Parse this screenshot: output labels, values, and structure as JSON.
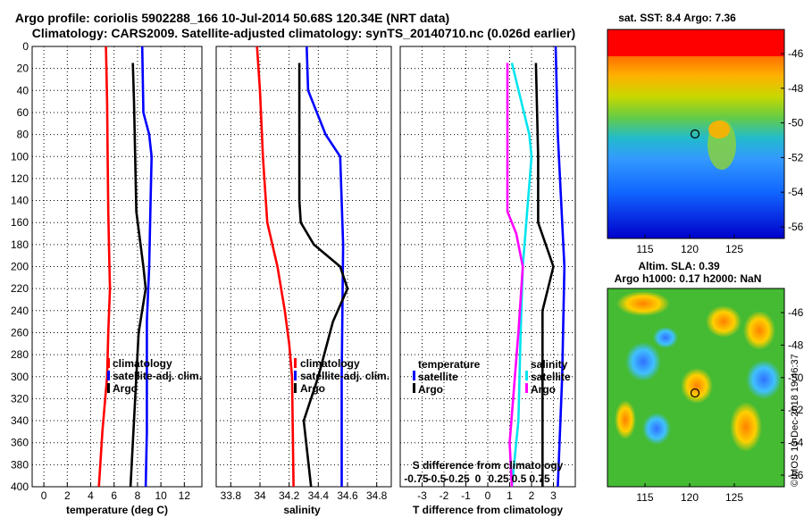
{
  "title_line1": "Argo profile: coriolis 5902288_166 10-Jul-2014 50.68S 120.34E (NRT data)",
  "title_line2": "Climatology: CARS2009. Satellite-adjusted climatology: synTS_20140710.nc (0.026d earlier)",
  "watermark": "©IMOS 13-Dec-2018 19:46:37",
  "colors": {
    "red": "#ff0000",
    "blue": "#0000ff",
    "black": "#000000",
    "magenta": "#ff00ff",
    "cyan": "#00e5ee"
  },
  "chart_data": [
    {
      "type": "line",
      "name": "temperature",
      "xlabel": "temperature (deg C)",
      "xlim": [
        -1,
        13.5
      ],
      "xticks": [
        "0",
        "2",
        "4",
        "6",
        "8",
        "10",
        "12"
      ],
      "ylim": [
        0,
        400
      ],
      "yticks": [
        "0",
        "20",
        "40",
        "60",
        "80",
        "100",
        "120",
        "140",
        "160",
        "180",
        "200",
        "220",
        "240",
        "260",
        "280",
        "300",
        "320",
        "340",
        "360",
        "380",
        "400"
      ],
      "legend": [
        "climatology",
        "satellite-adj. clim.",
        "Argo"
      ],
      "series": [
        {
          "name": "climatology",
          "color": "red",
          "depth": [
            0,
            50,
            100,
            150,
            200,
            220,
            260,
            300,
            350,
            400
          ],
          "values": [
            5.3,
            5.4,
            5.45,
            5.5,
            5.6,
            5.65,
            5.5,
            5.4,
            5.0,
            4.7
          ]
        },
        {
          "name": "satellite-adj. clim.",
          "color": "blue",
          "depth": [
            0,
            60,
            80,
            100,
            150,
            200,
            250,
            300,
            350,
            400
          ],
          "values": [
            8.4,
            8.5,
            9.0,
            9.2,
            9.1,
            9.0,
            8.8,
            8.8,
            8.8,
            8.7
          ]
        },
        {
          "name": "Argo",
          "color": "black",
          "depth": [
            15,
            50,
            100,
            150,
            200,
            220,
            260,
            300,
            340,
            400
          ],
          "values": [
            7.6,
            7.7,
            7.8,
            7.9,
            8.5,
            8.7,
            8.1,
            7.9,
            7.7,
            7.4
          ]
        }
      ]
    },
    {
      "type": "line",
      "name": "salinity",
      "xlabel": "salinity",
      "xlim": [
        33.7,
        34.9
      ],
      "xticks": [
        "33.8",
        "34",
        "34.2",
        "34.4",
        "34.6",
        "34.8"
      ],
      "ylim": [
        0,
        400
      ],
      "legend": [
        "climatology",
        "satellite-adj. clim.",
        "Argo"
      ],
      "series": [
        {
          "name": "climatology",
          "color": "red",
          "depth": [
            0,
            40,
            100,
            160,
            200,
            240,
            270,
            300,
            400
          ],
          "values": [
            33.98,
            34.0,
            34.02,
            34.05,
            34.12,
            34.17,
            34.2,
            34.22,
            34.23
          ]
        },
        {
          "name": "satellite-adj. clim.",
          "color": "blue",
          "depth": [
            0,
            40,
            80,
            100,
            180,
            300,
            400
          ],
          "values": [
            34.32,
            34.33,
            34.45,
            34.55,
            34.57,
            34.56,
            34.56
          ]
        },
        {
          "name": "Argo",
          "color": "black",
          "depth": [
            15,
            140,
            160,
            180,
            200,
            220,
            250,
            300,
            340,
            400
          ],
          "values": [
            34.27,
            34.27,
            34.28,
            34.37,
            34.55,
            34.6,
            34.5,
            34.4,
            34.3,
            34.35
          ]
        }
      ]
    },
    {
      "type": "line",
      "name": "difference",
      "xlabel": "T difference from climatology",
      "xlim": [
        -4,
        4
      ],
      "xticks": [
        "-3",
        "-2",
        "-1",
        "0",
        "1",
        "2",
        "3"
      ],
      "secondary_label": "S difference from climatology",
      "secondary_ticks": [
        "-0.75",
        "-0.5",
        "-0.25",
        "0",
        "0.25",
        "0.5",
        "0.75"
      ],
      "ylim": [
        0,
        400
      ],
      "legend_temperature": {
        "title": "temperature",
        "items": [
          "satellite",
          "Argo"
        ]
      },
      "legend_salinity": {
        "title": "salinity",
        "items": [
          "satellite",
          "Argo"
        ]
      },
      "series": [
        {
          "name": "T satellite",
          "color": "blue",
          "depth": [
            0,
            80,
            200,
            300,
            400
          ],
          "values": [
            3.1,
            3.2,
            3.5,
            3.4,
            3.2
          ]
        },
        {
          "name": "T Argo",
          "color": "black",
          "depth": [
            15,
            100,
            160,
            200,
            240,
            300,
            400
          ],
          "values": [
            2.2,
            2.3,
            2.3,
            3.0,
            2.5,
            2.5,
            2.5
          ]
        },
        {
          "name": "S satellite",
          "color": "cyan",
          "depth": [
            15,
            80,
            100,
            200,
            260,
            340,
            400
          ],
          "values": [
            1.1,
            1.9,
            2.0,
            1.6,
            1.5,
            1.4,
            1.1
          ]
        },
        {
          "name": "S Argo",
          "color": "magenta",
          "depth": [
            15,
            150,
            170,
            200,
            260,
            360,
            400
          ],
          "values": [
            0.9,
            0.9,
            1.3,
            1.6,
            1.4,
            1.0,
            1.1
          ]
        }
      ]
    },
    {
      "type": "heatmap",
      "name": "sst_map",
      "title": "sat. SST: 8.4 Argo: 7.36",
      "xticks": [
        "115",
        "120",
        "125"
      ],
      "yticks": [
        "-46",
        "-48",
        "-50",
        "-52",
        "-54",
        "-56"
      ],
      "marker": {
        "lon": 120.34,
        "lat": -50.68
      }
    },
    {
      "type": "heatmap",
      "name": "sla_map",
      "title_line1": "Altim. SLA: 0.39",
      "title_line2": "Argo h1000: 0.17 h2000: NaN",
      "xticks": [
        "115",
        "120",
        "125"
      ],
      "yticks": [
        "-46",
        "-48",
        "-50",
        "-52",
        "-54",
        "-56"
      ],
      "marker": {
        "lon": 120.34,
        "lat": -50.68
      }
    }
  ]
}
